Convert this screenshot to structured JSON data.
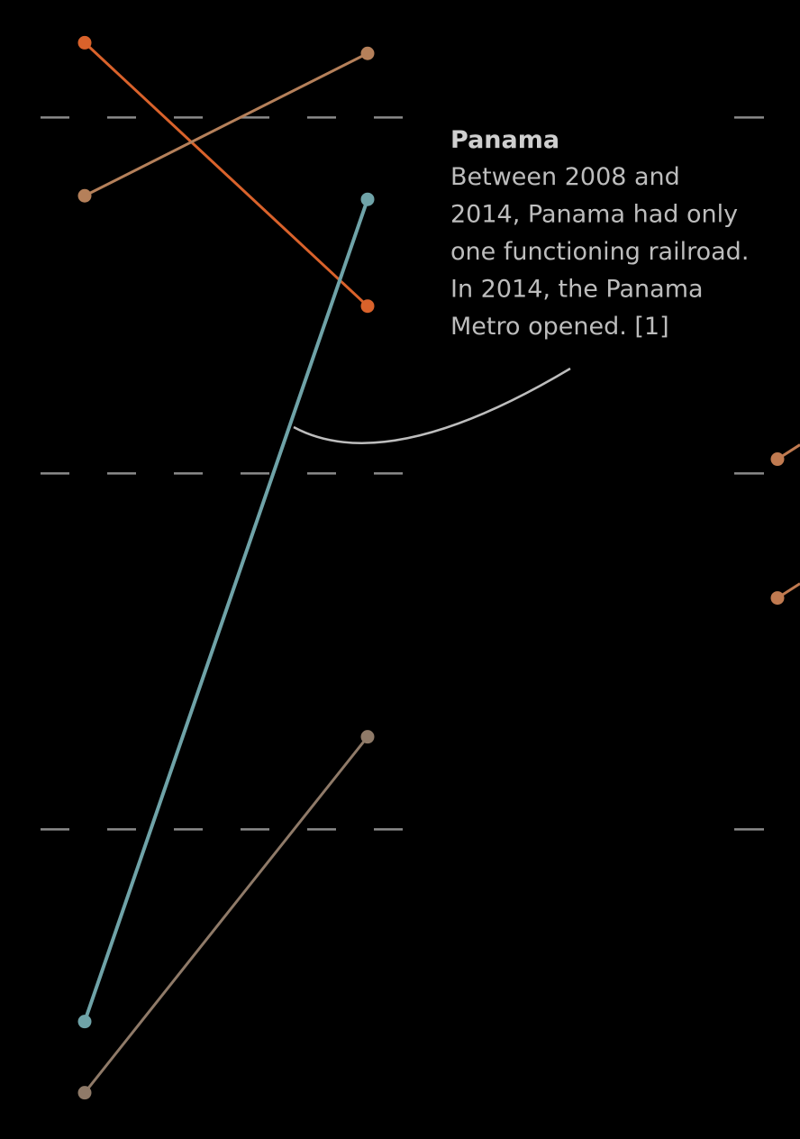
{
  "chart_data": {
    "type": "slope",
    "categories": [
      null,
      null,
      null
    ],
    "ylim": [
      -0.33,
      2.87
    ],
    "yticks": [
      0,
      1,
      2
    ],
    "grid": true,
    "series": [
      {
        "color": "#d9622b",
        "values": [
          -0.21,
          0.53,
          null
        ]
      },
      {
        "color": "#b5805a",
        "values": [
          0.22,
          -0.18,
          null
        ]
      },
      {
        "color": "#6fa3a8",
        "values": [
          2.54,
          0.23,
          null
        ]
      },
      {
        "color": "#8f7a68",
        "values": [
          2.74,
          1.74,
          null
        ]
      },
      {
        "color": "#c07a50",
        "values": [
          null,
          null,
          0.96
        ]
      },
      {
        "color": "#c07a50",
        "values": [
          null,
          null,
          1.35
        ]
      }
    ],
    "annotation": {
      "title": "Panama",
      "lines": [
        "Between 2008 and",
        "2014, Panama had only",
        "one functioning railroad.",
        "In 2014, the Panama",
        "Metro opened. [1]"
      ]
    }
  }
}
